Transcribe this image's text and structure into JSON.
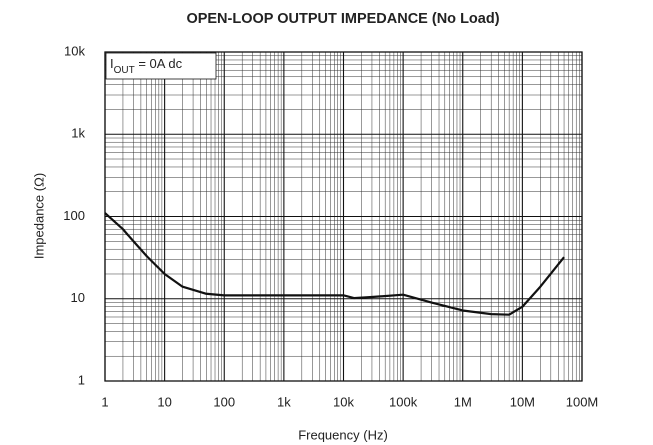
{
  "chart_data": {
    "type": "line",
    "title": "OPEN-LOOP OUTPUT IMPEDANCE (No Load)",
    "x_label": "Frequency (Hz)",
    "y_label": "Impedance (Ω)",
    "annotation": {
      "main": "I",
      "sub": "OUT",
      "rest": " = 0A dc"
    },
    "log_x": true,
    "log_y": true,
    "grid": true,
    "xlim": [
      1,
      100000000
    ],
    "xticks": [
      1,
      10,
      100,
      {
        "value": 1000,
        "label": "1k"
      },
      {
        "value": 10000,
        "label": "10k"
      },
      {
        "value": 100000,
        "label": "100k"
      },
      {
        "value": 1000000,
        "label": "1M"
      },
      {
        "value": 10000000,
        "label": "10M"
      },
      {
        "value": 100000000,
        "label": "100M"
      }
    ],
    "ylim": [
      1,
      10000
    ],
    "yticks": [
      1,
      10,
      100,
      {
        "value": 1000,
        "label": "1k"
      },
      {
        "value": 10000,
        "label": "10k"
      }
    ],
    "series": [
      {
        "color": "#111111",
        "x": [
          1,
          2,
          3,
          5,
          10,
          20,
          50,
          100,
          1000,
          10000,
          15000,
          30000,
          100000,
          300000,
          1000000,
          3000000,
          6000000,
          10000000,
          20000000,
          50000000
        ],
        "values": [
          110,
          70,
          50,
          33,
          20,
          14,
          11.5,
          11,
          11,
          11,
          10.2,
          10.5,
          11.2,
          9,
          7.2,
          6.5,
          6.4,
          8,
          14,
          32
        ]
      }
    ]
  }
}
